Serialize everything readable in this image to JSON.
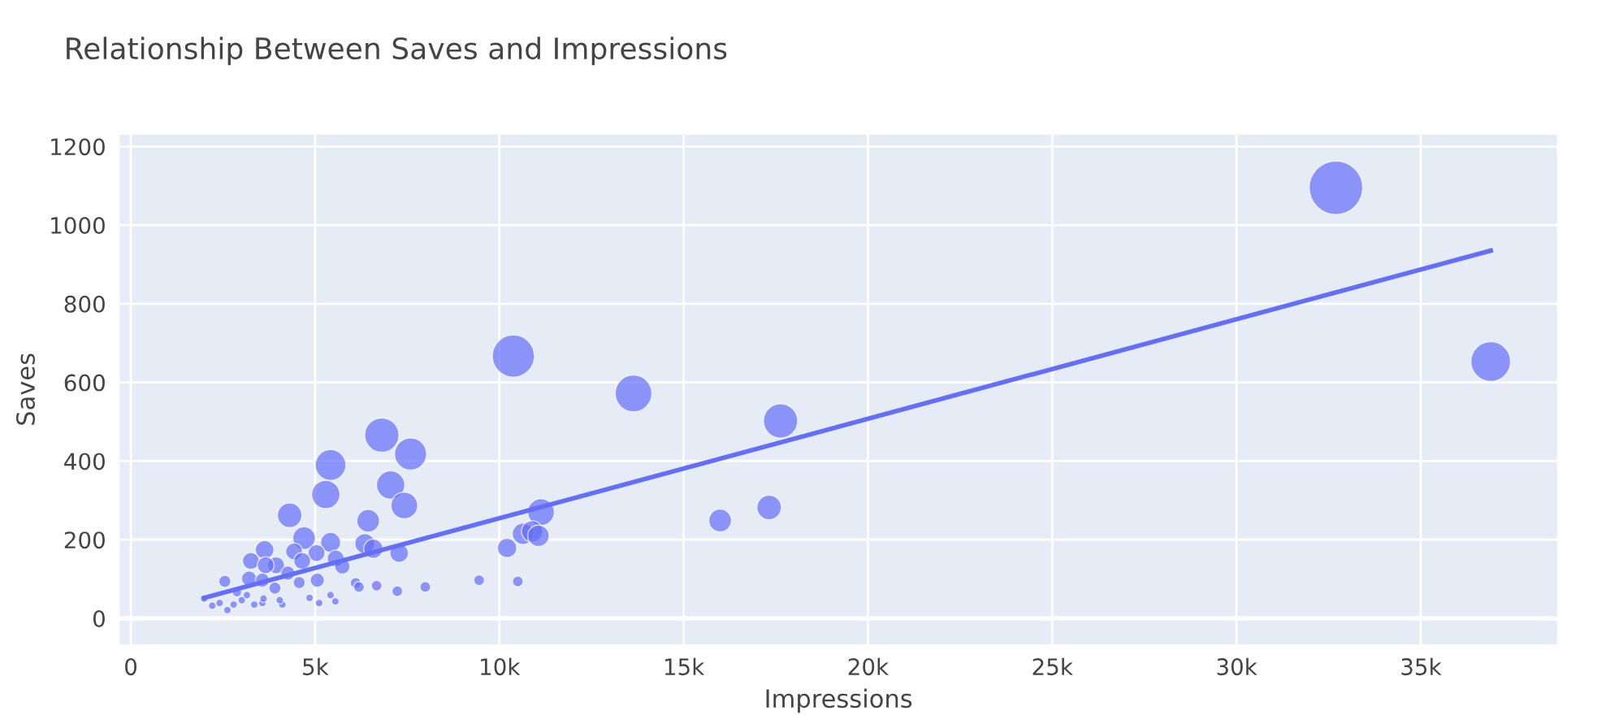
{
  "chart_data": {
    "type": "bubble",
    "title": "Relationship Between Saves and Impressions",
    "xlabel": "Impressions",
    "ylabel": "Saves",
    "xlim": [
      -300,
      38700
    ],
    "ylim": [
      -66,
      1230
    ],
    "xticks": [
      0,
      {
        "value": 5000,
        "label": "5k"
      },
      {
        "value": 10000,
        "label": "10k"
      },
      {
        "value": 15000,
        "label": "15k"
      },
      {
        "value": 20000,
        "label": "20k"
      },
      {
        "value": 25000,
        "label": "25k"
      },
      {
        "value": 30000,
        "label": "30k"
      },
      {
        "value": 35000,
        "label": "35k"
      }
    ],
    "yticks": [
      0,
      200,
      400,
      600,
      800,
      1000,
      1200
    ],
    "grid": true,
    "series": [
      {
        "color": "#636efa",
        "x": [
          10380,
          6810,
          7590,
          5420,
          5290,
          7050,
          7420,
          4310,
          6440,
          11130,
          10640,
          10890,
          11060,
          10210,
          4700,
          5420,
          6350,
          6580,
          7280,
          3630,
          3260,
          4430,
          3940,
          3660,
          5040,
          4650,
          5560,
          5740,
          3210,
          3570,
          3910,
          4260,
          4570,
          5060,
          2550,
          6100,
          6190,
          6670,
          7230,
          7990,
          9450,
          10500,
          1990,
          2210,
          2410,
          2620,
          2790,
          3010,
          2880,
          3350,
          3570,
          3600,
          4110,
          4040,
          4850,
          5110,
          5420,
          5550,
          3150,
          13640,
          17630,
          17320,
          15990,
          32700,
          36900
        ],
        "values": [
          667,
          466,
          418,
          390,
          315,
          339,
          287,
          262,
          248,
          270,
          215,
          221,
          210,
          179,
          204,
          193,
          190,
          177,
          166,
          174,
          146,
          170,
          135,
          135,
          166,
          146,
          152,
          132,
          101,
          97,
          77,
          115,
          91,
          97,
          94,
          90,
          80,
          83,
          69,
          80,
          97,
          94,
          50,
          32,
          39,
          21,
          35,
          46,
          66,
          35,
          39,
          50,
          35,
          46,
          52,
          39,
          59,
          43,
          59,
          572,
          502,
          282,
          249,
          1095,
          653
        ],
        "sizes": [
          0.62,
          0.41,
          0.36,
          0.33,
          0.28,
          0.28,
          0.25,
          0.21,
          0.18,
          0.25,
          0.16,
          0.16,
          0.16,
          0.13,
          0.18,
          0.14,
          0.14,
          0.13,
          0.12,
          0.12,
          0.1,
          0.1,
          0.1,
          0.1,
          0.1,
          0.1,
          0.1,
          0.08,
          0.08,
          0.07,
          0.05,
          0.07,
          0.05,
          0.07,
          0.05,
          0.04,
          0.04,
          0.04,
          0.04,
          0.04,
          0.04,
          0.04,
          0.02,
          0.02,
          0.02,
          0.02,
          0.02,
          0.02,
          0.03,
          0.02,
          0.02,
          0.02,
          0.02,
          0.02,
          0.02,
          0.02,
          0.02,
          0.02,
          0.02,
          0.47,
          0.41,
          0.21,
          0.18,
          1,
          0.55
        ]
      },
      {
        "type": "line",
        "color": "#636efa",
        "x": [
          1990,
          36900
        ],
        "values": [
          52,
          935
        ]
      }
    ]
  }
}
